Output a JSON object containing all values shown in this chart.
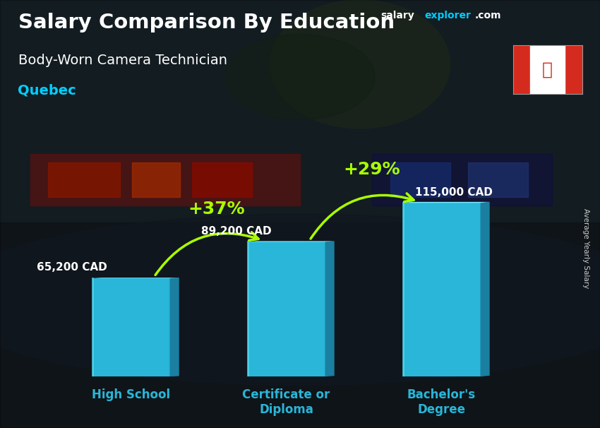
{
  "title_salary": "Salary Comparison By Education",
  "subtitle_job": "Body-Worn Camera Technician",
  "subtitle_location": "Quebec",
  "branding_salary": "salary",
  "branding_explorer": "explorer",
  "branding_com": ".com",
  "ylabel_rotated": "Average Yearly Salary",
  "categories": [
    "High School",
    "Certificate or\nDiploma",
    "Bachelor's\nDegree"
  ],
  "values": [
    65200,
    89200,
    115000
  ],
  "value_labels": [
    "65,200 CAD",
    "89,200 CAD",
    "115,000 CAD"
  ],
  "bar_color_main": "#29b6d8",
  "bar_color_light": "#55d8f0",
  "bar_color_dark": "#1a7fa0",
  "bar_color_top": "#7aeaff",
  "bar_shadow": "#0d5570",
  "arrow_color": "#aaff00",
  "pct_labels": [
    "+37%",
    "+29%"
  ],
  "title_color": "#ffffff",
  "subtitle_color": "#ffffff",
  "location_color": "#00cfff",
  "value_label_color": "#ffffff",
  "pct_label_color": "#aaff00",
  "brand_salary_color": "#ffffff",
  "brand_explorer_color": "#00ccff",
  "brand_com_color": "#ffffff",
  "ylabel_color": "#cccccc",
  "xtick_color": "#29b6d8",
  "ylim": [
    0,
    170000
  ],
  "bar_width": 0.5,
  "bg_overlay_color": "#1a2530",
  "bg_overlay_alpha": 0.55
}
